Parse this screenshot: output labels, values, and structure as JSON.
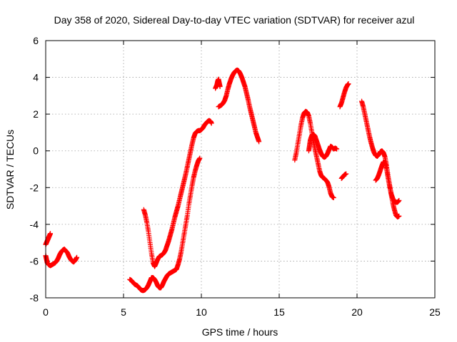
{
  "chart_data": {
    "type": "scatter",
    "title": "Day 358 of 2020, Sidereal Day-to-day VTEC variation (SDTVAR) for receiver azul",
    "xlabel": "GPS time / hours",
    "ylabel": "SDTVAR / TECUs",
    "xlim": [
      0,
      25
    ],
    "ylim": [
      -8,
      6
    ],
    "x_ticks": [
      0,
      5,
      10,
      15,
      20,
      25
    ],
    "y_ticks": [
      -8,
      -6,
      -4,
      -2,
      0,
      2,
      4,
      6
    ],
    "x_tick_labels": [
      "0",
      "5",
      "10",
      "15",
      "20",
      "25"
    ],
    "y_tick_labels": [
      "-8",
      "-6",
      "-4",
      "-2",
      "0",
      "2",
      "4",
      "6"
    ],
    "grid": true,
    "marker": "+",
    "color": "#ff0000",
    "series": [
      {
        "segments": [
          [
            [
              0.0,
              -5.1
            ],
            [
              0.05,
              -5.0
            ],
            [
              0.1,
              -4.9
            ],
            [
              0.15,
              -4.8
            ],
            [
              0.2,
              -4.7
            ],
            [
              0.25,
              -4.6
            ],
            [
              0.3,
              -4.5
            ]
          ],
          [
            [
              0.0,
              -5.7
            ],
            [
              0.05,
              -5.9
            ],
            [
              0.1,
              -6.1
            ],
            [
              0.2,
              -6.2
            ],
            [
              0.3,
              -6.25
            ],
            [
              0.4,
              -6.2
            ],
            [
              0.5,
              -6.15
            ],
            [
              0.6,
              -6.1
            ],
            [
              0.7,
              -6.0
            ],
            [
              0.8,
              -5.85
            ],
            [
              0.9,
              -5.65
            ],
            [
              1.0,
              -5.5
            ],
            [
              1.1,
              -5.4
            ],
            [
              1.2,
              -5.35
            ],
            [
              1.3,
              -5.45
            ],
            [
              1.4,
              -5.55
            ],
            [
              1.5,
              -5.75
            ],
            [
              1.6,
              -5.9
            ],
            [
              1.7,
              -6.0
            ],
            [
              1.8,
              -6.05
            ],
            [
              1.9,
              -5.95
            ],
            [
              2.0,
              -5.8
            ]
          ],
          [
            [
              5.4,
              -7.0
            ],
            [
              5.5,
              -7.05
            ],
            [
              5.6,
              -7.15
            ],
            [
              5.7,
              -7.25
            ],
            [
              5.8,
              -7.3
            ],
            [
              5.9,
              -7.35
            ],
            [
              6.0,
              -7.45
            ],
            [
              6.1,
              -7.55
            ],
            [
              6.2,
              -7.6
            ],
            [
              6.3,
              -7.6
            ],
            [
              6.4,
              -7.55
            ],
            [
              6.5,
              -7.45
            ],
            [
              6.6,
              -7.3
            ],
            [
              6.7,
              -7.1
            ],
            [
              6.8,
              -6.9
            ],
            [
              6.9,
              -6.9
            ],
            [
              7.0,
              -7.0
            ],
            [
              7.1,
              -7.15
            ],
            [
              7.2,
              -7.35
            ],
            [
              7.3,
              -7.45
            ],
            [
              7.4,
              -7.45
            ],
            [
              7.5,
              -7.3
            ],
            [
              7.6,
              -7.1
            ],
            [
              7.7,
              -6.95
            ],
            [
              7.8,
              -6.8
            ],
            [
              7.9,
              -6.7
            ],
            [
              8.0,
              -6.65
            ],
            [
              8.1,
              -6.6
            ],
            [
              8.2,
              -6.55
            ],
            [
              8.3,
              -6.5
            ],
            [
              8.4,
              -6.45
            ],
            [
              8.5,
              -6.2
            ],
            [
              8.6,
              -5.9
            ],
            [
              8.7,
              -5.5
            ],
            [
              8.8,
              -5.0
            ],
            [
              8.9,
              -4.5
            ],
            [
              9.0,
              -4.0
            ],
            [
              9.1,
              -3.5
            ],
            [
              9.2,
              -2.9
            ],
            [
              9.3,
              -2.4
            ],
            [
              9.4,
              -1.9
            ],
            [
              9.5,
              -1.45
            ],
            [
              9.6,
              -1.1
            ],
            [
              9.7,
              -0.8
            ],
            [
              9.8,
              -0.55
            ],
            [
              9.9,
              -0.4
            ]
          ],
          [
            [
              6.3,
              -3.2
            ],
            [
              6.4,
              -3.5
            ],
            [
              6.5,
              -3.9
            ],
            [
              6.6,
              -4.4
            ],
            [
              6.7,
              -5.0
            ],
            [
              6.8,
              -5.6
            ],
            [
              6.9,
              -6.1
            ],
            [
              7.0,
              -6.3
            ],
            [
              7.1,
              -6.1
            ],
            [
              7.2,
              -5.9
            ],
            [
              7.3,
              -5.75
            ],
            [
              7.4,
              -5.7
            ],
            [
              7.5,
              -5.65
            ],
            [
              7.6,
              -5.55
            ],
            [
              7.7,
              -5.4
            ],
            [
              7.8,
              -5.15
            ],
            [
              7.9,
              -4.9
            ],
            [
              8.0,
              -4.6
            ],
            [
              8.1,
              -4.3
            ],
            [
              8.2,
              -3.95
            ],
            [
              8.3,
              -3.6
            ],
            [
              8.4,
              -3.3
            ],
            [
              8.5,
              -3.0
            ],
            [
              8.6,
              -2.65
            ],
            [
              8.7,
              -2.3
            ],
            [
              8.8,
              -1.95
            ],
            [
              8.9,
              -1.6
            ],
            [
              9.0,
              -1.25
            ],
            [
              9.1,
              -0.85
            ],
            [
              9.2,
              -0.45
            ],
            [
              9.3,
              -0.05
            ],
            [
              9.4,
              0.35
            ],
            [
              9.5,
              0.7
            ],
            [
              9.6,
              0.95
            ],
            [
              9.7,
              1.05
            ],
            [
              9.8,
              1.1
            ],
            [
              9.9,
              1.1
            ],
            [
              10.0,
              1.15
            ],
            [
              10.1,
              1.25
            ],
            [
              10.2,
              1.4
            ],
            [
              10.3,
              1.5
            ],
            [
              10.4,
              1.6
            ],
            [
              10.5,
              1.65
            ],
            [
              10.6,
              1.6
            ],
            [
              10.65,
              1.5
            ]
          ],
          [
            [
              10.9,
              3.4
            ],
            [
              11.0,
              3.6
            ],
            [
              11.05,
              3.8
            ],
            [
              11.1,
              3.9
            ],
            [
              11.15,
              3.7
            ],
            [
              11.2,
              3.5
            ]
          ],
          [
            [
              11.1,
              2.4
            ],
            [
              11.2,
              2.45
            ],
            [
              11.3,
              2.5
            ],
            [
              11.4,
              2.6
            ],
            [
              11.5,
              2.75
            ],
            [
              11.6,
              3.0
            ],
            [
              11.7,
              3.35
            ],
            [
              11.8,
              3.65
            ],
            [
              11.9,
              3.9
            ],
            [
              12.0,
              4.1
            ],
            [
              12.1,
              4.25
            ],
            [
              12.2,
              4.35
            ],
            [
              12.3,
              4.4
            ],
            [
              12.4,
              4.35
            ],
            [
              12.5,
              4.2
            ],
            [
              12.6,
              4.0
            ],
            [
              12.7,
              3.75
            ],
            [
              12.8,
              3.5
            ],
            [
              12.9,
              3.15
            ],
            [
              13.0,
              2.8
            ],
            [
              13.1,
              2.4
            ],
            [
              13.2,
              2.05
            ],
            [
              13.3,
              1.7
            ],
            [
              13.4,
              1.35
            ],
            [
              13.5,
              1.0
            ],
            [
              13.6,
              0.75
            ],
            [
              13.7,
              0.5
            ]
          ],
          [
            [
              16.0,
              -0.5
            ],
            [
              16.1,
              -0.1
            ],
            [
              16.2,
              0.4
            ],
            [
              16.3,
              0.9
            ],
            [
              16.4,
              1.4
            ],
            [
              16.5,
              1.8
            ],
            [
              16.6,
              2.05
            ],
            [
              16.7,
              2.15
            ],
            [
              16.8,
              2.1
            ],
            [
              16.9,
              1.9
            ],
            [
              17.0,
              1.5
            ],
            [
              17.1,
              1.0
            ],
            [
              17.2,
              0.5
            ],
            [
              17.3,
              0.1
            ],
            [
              17.4,
              -0.3
            ],
            [
              17.5,
              -0.7
            ],
            [
              17.6,
              -1.1
            ],
            [
              17.7,
              -1.35
            ],
            [
              17.8,
              -1.45
            ],
            [
              17.9,
              -1.5
            ],
            [
              18.0,
              -1.6
            ],
            [
              18.1,
              -1.7
            ],
            [
              18.2,
              -1.95
            ],
            [
              18.3,
              -2.3
            ],
            [
              18.4,
              -2.5
            ],
            [
              18.5,
              -2.55
            ]
          ],
          [
            [
              16.9,
              0.0
            ],
            [
              16.95,
              0.3
            ],
            [
              17.0,
              0.6
            ],
            [
              17.1,
              0.85
            ],
            [
              17.2,
              0.9
            ],
            [
              17.3,
              0.8
            ],
            [
              17.4,
              0.55
            ],
            [
              17.5,
              0.3
            ],
            [
              17.6,
              0.05
            ],
            [
              17.7,
              -0.15
            ],
            [
              17.8,
              -0.3
            ],
            [
              17.9,
              -0.35
            ],
            [
              18.0,
              -0.3
            ],
            [
              18.1,
              -0.15
            ],
            [
              18.2,
              0.05
            ],
            [
              18.3,
              0.25
            ],
            [
              18.4,
              0.2
            ],
            [
              18.5,
              0.1
            ],
            [
              18.6,
              0.15
            ],
            [
              18.7,
              0.1
            ]
          ],
          [
            [
              18.9,
              2.4
            ],
            [
              19.0,
              2.6
            ],
            [
              19.1,
              2.9
            ],
            [
              19.2,
              3.2
            ],
            [
              19.3,
              3.45
            ],
            [
              19.4,
              3.6
            ],
            [
              19.45,
              3.65
            ]
          ],
          [
            [
              19.0,
              -1.5
            ],
            [
              19.1,
              -1.4
            ],
            [
              19.2,
              -1.3
            ],
            [
              19.3,
              -1.25
            ]
          ],
          [
            [
              20.3,
              2.7
            ],
            [
              20.4,
              2.4
            ],
            [
              20.5,
              2.0
            ],
            [
              20.6,
              1.6
            ],
            [
              20.7,
              1.2
            ],
            [
              20.8,
              0.8
            ],
            [
              20.9,
              0.45
            ],
            [
              21.0,
              0.15
            ],
            [
              21.1,
              -0.1
            ],
            [
              21.2,
              -0.25
            ],
            [
              21.3,
              -0.3
            ],
            [
              21.4,
              -0.2
            ],
            [
              21.5,
              -0.05
            ],
            [
              21.6,
              0.0
            ],
            [
              21.7,
              -0.1
            ],
            [
              21.8,
              -0.35
            ],
            [
              21.9,
              -0.8
            ],
            [
              22.0,
              -1.4
            ],
            [
              22.1,
              -1.9
            ],
            [
              22.2,
              -2.4
            ],
            [
              22.3,
              -2.85
            ],
            [
              22.4,
              -3.2
            ],
            [
              22.5,
              -3.5
            ],
            [
              22.6,
              -3.6
            ],
            [
              22.7,
              -3.55
            ]
          ],
          [
            [
              21.2,
              -1.6
            ],
            [
              21.3,
              -1.5
            ],
            [
              21.4,
              -1.3
            ],
            [
              21.5,
              -1.05
            ],
            [
              21.6,
              -0.8
            ],
            [
              21.7,
              -0.6
            ],
            [
              21.8,
              -0.65
            ],
            [
              21.9,
              -1.0
            ],
            [
              22.0,
              -1.5
            ],
            [
              22.1,
              -1.95
            ],
            [
              22.2,
              -2.35
            ],
            [
              22.3,
              -2.6
            ],
            [
              22.4,
              -2.75
            ],
            [
              22.5,
              -2.8
            ],
            [
              22.6,
              -2.8
            ],
            [
              22.7,
              -2.7
            ]
          ]
        ]
      }
    ]
  }
}
